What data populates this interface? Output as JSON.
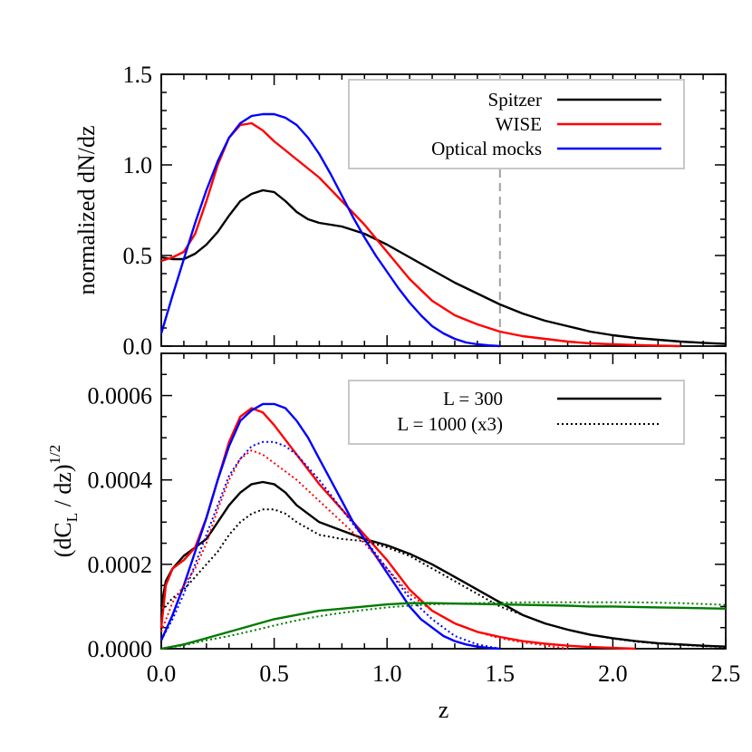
{
  "chart_data": [
    {
      "type": "line",
      "ylabel": "normalized dN/dz",
      "xlim": [
        0,
        2.5
      ],
      "ylim": [
        0,
        1.5
      ],
      "y_ticks": [
        "0.0",
        "0.5",
        "1.0",
        "1.5"
      ],
      "vertical_line_x": 1.5,
      "legend_position": "top-right",
      "series": [
        {
          "name": "Spitzer",
          "color": "#000000",
          "style": "solid",
          "x": [
            0.0,
            0.05,
            0.1,
            0.15,
            0.2,
            0.25,
            0.3,
            0.35,
            0.4,
            0.45,
            0.5,
            0.55,
            0.6,
            0.65,
            0.7,
            0.8,
            0.9,
            1.0,
            1.1,
            1.2,
            1.3,
            1.4,
            1.5,
            1.6,
            1.7,
            1.8,
            1.9,
            2.0,
            2.1,
            2.2,
            2.3,
            2.4,
            2.5
          ],
          "y": [
            0.49,
            0.48,
            0.48,
            0.51,
            0.56,
            0.63,
            0.72,
            0.8,
            0.84,
            0.86,
            0.85,
            0.8,
            0.74,
            0.7,
            0.68,
            0.66,
            0.62,
            0.56,
            0.49,
            0.42,
            0.35,
            0.29,
            0.23,
            0.18,
            0.14,
            0.11,
            0.08,
            0.06,
            0.045,
            0.035,
            0.025,
            0.018,
            0.012
          ]
        },
        {
          "name": "WISE",
          "color": "#ff0000",
          "style": "solid",
          "x": [
            0.0,
            0.05,
            0.1,
            0.15,
            0.2,
            0.25,
            0.3,
            0.35,
            0.4,
            0.45,
            0.5,
            0.55,
            0.6,
            0.7,
            0.8,
            0.9,
            1.0,
            1.1,
            1.2,
            1.3,
            1.4,
            1.5,
            1.6,
            1.7,
            1.8,
            1.9,
            2.0,
            2.1,
            2.2,
            2.3
          ],
          "y": [
            0.47,
            0.49,
            0.52,
            0.62,
            0.8,
            1.0,
            1.15,
            1.22,
            1.23,
            1.19,
            1.13,
            1.08,
            1.03,
            0.93,
            0.8,
            0.67,
            0.52,
            0.37,
            0.25,
            0.17,
            0.12,
            0.08,
            0.055,
            0.04,
            0.025,
            0.015,
            0.01,
            0.006,
            0.003,
            0.0
          ]
        },
        {
          "name": "Optical mocks",
          "color": "#0000ff",
          "style": "solid",
          "x": [
            0.0,
            0.05,
            0.1,
            0.15,
            0.2,
            0.25,
            0.3,
            0.35,
            0.4,
            0.45,
            0.5,
            0.55,
            0.6,
            0.65,
            0.7,
            0.75,
            0.8,
            0.85,
            0.9,
            0.95,
            1.0,
            1.05,
            1.1,
            1.15,
            1.2,
            1.25,
            1.3,
            1.35,
            1.4,
            1.45,
            1.5
          ],
          "y": [
            0.07,
            0.28,
            0.48,
            0.68,
            0.86,
            1.02,
            1.15,
            1.23,
            1.27,
            1.28,
            1.28,
            1.26,
            1.22,
            1.15,
            1.06,
            0.95,
            0.83,
            0.71,
            0.6,
            0.5,
            0.41,
            0.32,
            0.24,
            0.17,
            0.11,
            0.07,
            0.04,
            0.02,
            0.01,
            0.004,
            0.0
          ]
        }
      ]
    },
    {
      "type": "line",
      "xlabel": "z",
      "ylabel": "(dC",
      "ylabel_sub": "L",
      "ylabel_mid": " / dz)",
      "ylabel_sup": "1/2",
      "xlim": [
        0,
        2.5
      ],
      "ylim": [
        0,
        0.0007
      ],
      "x_ticks": [
        "0.0",
        "0.5",
        "1.0",
        "1.5",
        "2.0",
        "2.5"
      ],
      "y_ticks": [
        "0.0000",
        "0.0002",
        "0.0004",
        "0.0006"
      ],
      "legend_position": "top-right",
      "legend": [
        {
          "label": "L = 300",
          "style": "solid"
        },
        {
          "label": "L = 1000 (x3)",
          "style": "dotted"
        }
      ],
      "series": [
        {
          "color": "#000000",
          "style": "solid",
          "x": [
            0.0,
            0.02,
            0.05,
            0.1,
            0.15,
            0.2,
            0.25,
            0.3,
            0.35,
            0.4,
            0.45,
            0.5,
            0.55,
            0.6,
            0.7,
            0.8,
            0.9,
            1.0,
            1.1,
            1.2,
            1.3,
            1.4,
            1.5,
            1.6,
            1.7,
            1.8,
            1.9,
            2.0,
            2.1,
            2.2,
            2.3,
            2.4,
            2.5
          ],
          "y": [
            0.0001,
            0.00016,
            0.00019,
            0.00022,
            0.00024,
            0.00026,
            0.0003,
            0.00034,
            0.00037,
            0.00039,
            0.000395,
            0.00039,
            0.00037,
            0.00034,
            0.0003,
            0.00028,
            0.00026,
            0.000245,
            0.000225,
            0.0002,
            0.00017,
            0.00014,
            0.00011,
            8e-05,
            6e-05,
            4.5e-05,
            3.3e-05,
            2.5e-05,
            1.8e-05,
            1.3e-05,
            1e-05,
            7e-06,
            5e-06
          ]
        },
        {
          "color": "#ff0000",
          "style": "solid",
          "x": [
            0.0,
            0.02,
            0.05,
            0.1,
            0.15,
            0.2,
            0.25,
            0.3,
            0.35,
            0.4,
            0.45,
            0.5,
            0.6,
            0.7,
            0.8,
            0.9,
            1.0,
            1.1,
            1.2,
            1.3,
            1.4,
            1.5,
            1.6,
            1.7,
            1.8,
            1.9,
            2.0,
            2.1
          ],
          "y": [
            5e-05,
            0.00015,
            0.00019,
            0.00021,
            0.00024,
            0.00031,
            0.0004,
            0.00049,
            0.00055,
            0.00057,
            0.00056,
            0.00053,
            0.00046,
            0.00039,
            0.00033,
            0.00027,
            0.00021,
            0.00014,
            9e-05,
            6e-05,
            4e-05,
            2.8e-05,
            1.8e-05,
            1.2e-05,
            7e-06,
            4e-06,
            2e-06,
            0.0
          ]
        },
        {
          "color": "#0000ff",
          "style": "solid",
          "x": [
            0.0,
            0.05,
            0.1,
            0.15,
            0.2,
            0.25,
            0.3,
            0.35,
            0.4,
            0.45,
            0.5,
            0.55,
            0.6,
            0.65,
            0.7,
            0.75,
            0.8,
            0.85,
            0.9,
            0.95,
            1.0,
            1.05,
            1.1,
            1.15,
            1.2,
            1.25,
            1.3,
            1.35,
            1.4,
            1.45,
            1.5
          ],
          "y": [
            2e-05,
            8e-05,
            0.00015,
            0.00023,
            0.00031,
            0.0004,
            0.00048,
            0.00054,
            0.000565,
            0.00058,
            0.00058,
            0.00057,
            0.00054,
            0.0005,
            0.00045,
            0.0004,
            0.00035,
            0.0003,
            0.00026,
            0.00022,
            0.00018,
            0.00014,
            0.0001,
            7e-05,
            5e-05,
            3e-05,
            1.8e-05,
            1e-05,
            5e-06,
            2e-06,
            0.0
          ]
        },
        {
          "color": "#000000",
          "style": "dotted",
          "x": [
            0.0,
            0.05,
            0.1,
            0.15,
            0.2,
            0.25,
            0.3,
            0.35,
            0.4,
            0.45,
            0.5,
            0.55,
            0.6,
            0.7,
            0.8,
            0.9,
            1.0,
            1.1,
            1.2,
            1.3,
            1.4,
            1.5,
            1.6,
            1.7,
            1.8,
            1.9,
            2.0,
            2.1,
            2.2,
            2.3,
            2.4,
            2.5
          ],
          "y": [
            9e-05,
            0.00012,
            0.00014,
            0.00017,
            0.0002,
            0.00023,
            0.00027,
            0.0003,
            0.00032,
            0.00033,
            0.00033,
            0.00032,
            0.0003,
            0.00027,
            0.00026,
            0.000255,
            0.00024,
            0.00022,
            0.00019,
            0.00016,
            0.00013,
            0.0001,
            8e-05,
            6e-05,
            4.5e-05,
            3.3e-05,
            2.4e-05,
            1.7e-05,
            1.2e-05,
            9e-06,
            6e-06,
            4e-06
          ]
        },
        {
          "color": "#ff0000",
          "style": "dotted",
          "x": [
            0.0,
            0.05,
            0.1,
            0.15,
            0.2,
            0.25,
            0.3,
            0.35,
            0.4,
            0.45,
            0.5,
            0.6,
            0.7,
            0.8,
            0.9,
            1.0,
            1.1,
            1.2,
            1.3,
            1.4,
            1.5,
            1.6,
            1.7,
            1.8
          ],
          "y": [
            4e-05,
            0.00011,
            0.00015,
            0.00019,
            0.00025,
            0.00033,
            0.0004,
            0.00045,
            0.00047,
            0.00046,
            0.00044,
            0.0004,
            0.00035,
            0.0003,
            0.00025,
            0.00019,
            0.00013,
            9e-05,
            6e-05,
            4e-05,
            2.5e-05,
            1.5e-05,
            8e-06,
            0.0
          ]
        },
        {
          "color": "#0000ff",
          "style": "dotted",
          "x": [
            0.0,
            0.05,
            0.1,
            0.15,
            0.2,
            0.25,
            0.3,
            0.35,
            0.4,
            0.45,
            0.5,
            0.55,
            0.6,
            0.7,
            0.8,
            0.9,
            1.0,
            1.1,
            1.2,
            1.3,
            1.4,
            1.5
          ],
          "y": [
            2e-05,
            7e-05,
            0.00013,
            0.0002,
            0.00027,
            0.00034,
            0.00041,
            0.00045,
            0.00048,
            0.00049,
            0.00049,
            0.00048,
            0.00046,
            0.0004,
            0.00033,
            0.00026,
            0.00019,
            0.00012,
            7e-05,
            3e-05,
            1e-05,
            0.0
          ]
        },
        {
          "color": "#007a00",
          "style": "solid",
          "x": [
            0.0,
            0.1,
            0.2,
            0.3,
            0.4,
            0.5,
            0.6,
            0.7,
            0.8,
            0.9,
            1.0,
            1.1,
            1.2,
            1.3,
            1.4,
            1.5,
            1.6,
            1.7,
            1.8,
            1.9,
            2.0,
            2.1,
            2.2,
            2.3,
            2.4,
            2.5
          ],
          "y": [
            0.0,
            1e-05,
            2.5e-05,
            4e-05,
            5.5e-05,
            7e-05,
            8e-05,
            9e-05,
            9.5e-05,
            0.0001,
            0.000105,
            0.000108,
            0.000108,
            0.000107,
            0.000106,
            0.000105,
            0.000104,
            0.000103,
            0.000102,
            0.0001,
            0.0001,
            9.9e-05,
            9.8e-05,
            9.7e-05,
            9.6e-05,
            9.5e-05
          ]
        },
        {
          "color": "#007a00",
          "style": "dotted",
          "x": [
            0.0,
            0.1,
            0.2,
            0.3,
            0.4,
            0.5,
            0.6,
            0.7,
            0.8,
            0.9,
            1.0,
            1.1,
            1.2,
            1.3,
            1.4,
            1.5,
            1.6,
            1.7,
            1.8,
            1.9,
            2.0,
            2.1,
            2.2,
            2.3,
            2.4,
            2.5
          ],
          "y": [
            0.0,
            8e-06,
            2e-05,
            3e-05,
            4.2e-05,
            5.5e-05,
            6.7e-05,
            7.7e-05,
            8.5e-05,
            9.2e-05,
            9.8e-05,
            0.000102,
            0.000105,
            0.000107,
            0.000108,
            0.000109,
            0.00011,
            0.00011,
            0.00011,
            0.00011,
            0.00011,
            0.00011,
            0.000109,
            0.000108,
            0.000106,
            0.000104
          ]
        }
      ]
    }
  ]
}
